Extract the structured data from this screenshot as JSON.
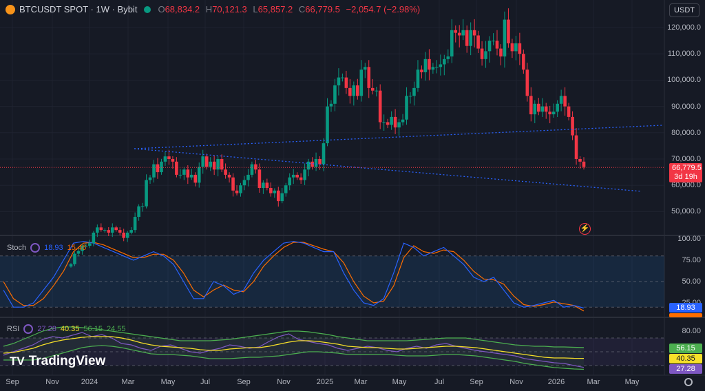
{
  "header": {
    "symbol": "BTCUSDT SPOT · 1W · Bybit",
    "o_label": "O",
    "o": "68,834.2",
    "h_label": "H",
    "h": "70,121.3",
    "l_label": "L",
    "l": "65,857.2",
    "c_label": "C",
    "c": "66,779.5",
    "change": "−2,054.7 (−2.98%)"
  },
  "currency_button": "USDT",
  "price_tag": {
    "price": "66,779.5",
    "countdown": "3d 19h"
  },
  "price_axis": [
    "120,000.0",
    "110,000.0",
    "100,000.0",
    "90,000.0",
    "80,000.0",
    "70,000.0",
    "60,000.0",
    "50,000.0"
  ],
  "stoch": {
    "name": "Stoch",
    "k": "18.93",
    "d": "15.46",
    "axis": [
      "100.00",
      "75.00",
      "50.00",
      "25.00"
    ]
  },
  "rsi": {
    "name": "RSI",
    "rsi": "27.28",
    "ma": "40.35",
    "upper": "56.15",
    "lower": "24.55",
    "axis": [
      "80.00"
    ]
  },
  "time_axis": [
    "Sep",
    "Nov",
    "2024",
    "Mar",
    "May",
    "Jul",
    "Sep",
    "Nov",
    "2025",
    "Mar",
    "May",
    "Jul",
    "Sep",
    "Nov",
    "2026",
    "Mar",
    "May"
  ],
  "watermark": "TradingView",
  "colors": {
    "up": "#089981",
    "down": "#f23645",
    "k": "#2962ff",
    "d": "#ff6d00",
    "rsi": "#7e57c2",
    "ma": "#f7e02a",
    "bb": "#4caf50"
  },
  "chart_data": {
    "type": "candlestick",
    "title": "BTCUSDT SPOT 1W Bybit",
    "ylim": [
      45000,
      125000
    ],
    "closes_k": [
      30,
      34,
      35,
      37,
      37,
      38,
      42,
      44,
      43,
      43,
      42,
      44,
      43,
      42,
      40,
      42,
      43,
      48,
      52,
      52,
      62,
      63,
      68,
      65,
      69,
      71,
      70,
      69,
      64,
      64,
      66,
      63,
      64,
      61,
      67,
      71,
      67,
      69,
      66,
      70,
      66,
      64,
      63,
      58,
      57,
      60,
      62,
      64,
      68,
      66,
      59,
      61,
      59,
      57,
      58,
      54,
      57,
      60,
      63,
      64,
      63,
      62,
      66,
      69,
      67,
      70,
      68,
      76,
      90,
      91,
      98,
      101,
      101,
      97,
      94,
      98,
      94,
      104,
      105,
      97,
      96,
      96,
      84,
      84,
      83,
      86,
      82,
      84,
      85,
      94,
      94,
      97,
      104,
      103,
      108,
      104,
      105,
      105,
      106,
      108,
      109,
      119,
      118,
      117,
      119,
      113,
      119,
      117,
      112,
      108,
      111,
      115,
      115,
      112,
      109,
      123,
      114,
      111,
      114,
      110,
      104,
      94,
      87,
      91,
      88,
      90,
      88,
      87,
      88,
      91,
      94,
      90,
      86,
      79,
      70,
      69,
      67
    ],
    "stoch_k": [
      40,
      20,
      20,
      25,
      40,
      55,
      75,
      95,
      97,
      95,
      90,
      85,
      80,
      75,
      80,
      85,
      80,
      70,
      50,
      30,
      30,
      50,
      45,
      35,
      40,
      60,
      75,
      85,
      95,
      97,
      95,
      90,
      85,
      85,
      60,
      40,
      25,
      22,
      30,
      60,
      95,
      90,
      80,
      85,
      90,
      80,
      70,
      55,
      50,
      55,
      40,
      25,
      20,
      22,
      25,
      28,
      20,
      22,
      18.93
    ],
    "stoch_d": [
      50,
      30,
      22,
      22,
      30,
      45,
      62,
      85,
      95,
      96,
      93,
      88,
      83,
      78,
      78,
      82,
      82,
      75,
      60,
      40,
      32,
      40,
      46,
      40,
      38,
      50,
      68,
      80,
      90,
      96,
      96,
      92,
      88,
      85,
      72,
      50,
      33,
      25,
      27,
      45,
      78,
      92,
      85,
      83,
      87,
      85,
      75,
      62,
      53,
      52,
      47,
      33,
      23,
      21,
      23,
      26,
      24,
      22,
      15.46
    ],
    "rsi": [
      45,
      50,
      55,
      60,
      68,
      72,
      70,
      74,
      78,
      72,
      75,
      70,
      62,
      60,
      55,
      52,
      58,
      60,
      55,
      50,
      48,
      52,
      55,
      60,
      58,
      55,
      57,
      65,
      72,
      76,
      68,
      65,
      62,
      60,
      55,
      52,
      55,
      58,
      56,
      52,
      50,
      55,
      58,
      55,
      60,
      62,
      58,
      55,
      52,
      50,
      48,
      46,
      44,
      40,
      38,
      36,
      34,
      33,
      30,
      27.28
    ],
    "rsi_ma": [
      48,
      49,
      52,
      55,
      60,
      64,
      67,
      69,
      71,
      72,
      72,
      72,
      70,
      67,
      63,
      60,
      58,
      57,
      56,
      55,
      53,
      52,
      52,
      54,
      55,
      56,
      56,
      58,
      61,
      64,
      66,
      66,
      65,
      63,
      61,
      58,
      57,
      56,
      56,
      55,
      54,
      54,
      55,
      56,
      57,
      58,
      58,
      57,
      56,
      54,
      52,
      50,
      48,
      46,
      44,
      42,
      41,
      41,
      40.5,
      40.35
    ],
    "rsi_upper": [
      58,
      62,
      68,
      74,
      80,
      84,
      86,
      86,
      85,
      84,
      82,
      80,
      78,
      76,
      74,
      72,
      70,
      68,
      66,
      66,
      66,
      66,
      67,
      68,
      70,
      72,
      74,
      76,
      78,
      80,
      80,
      79,
      77,
      75,
      72,
      70,
      68,
      66,
      66,
      66,
      66,
      66,
      67,
      68,
      69,
      70,
      70,
      70,
      68,
      66,
      64,
      62,
      60,
      59,
      58,
      58,
      57,
      57,
      56.5,
      56.15
    ],
    "rsi_lower": [
      38,
      38,
      38,
      38,
      40,
      44,
      48,
      52,
      56,
      58,
      59,
      58,
      56,
      53,
      50,
      47,
      46,
      46,
      45,
      44,
      42,
      40,
      40,
      40,
      41,
      42,
      42,
      43,
      44,
      46,
      48,
      50,
      50,
      49,
      48,
      46,
      46,
      46,
      46,
      46,
      45,
      44,
      44,
      44,
      45,
      46,
      46,
      45,
      44,
      42,
      40,
      38,
      36,
      33,
      31,
      29,
      27,
      26,
      25,
      24.55
    ],
    "stoch_ylim": [
      0,
      100
    ],
    "rsi_ylim": [
      20,
      90
    ]
  }
}
